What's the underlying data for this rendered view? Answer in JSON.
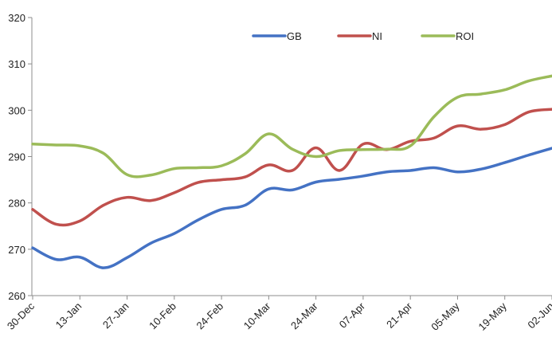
{
  "chart_data": {
    "type": "line",
    "xlabel": "",
    "ylabel": "",
    "x_tick_labels": [
      "30-Dec",
      "13-Jan",
      "27-Jan",
      "10-Feb",
      "24-Feb",
      "10-Mar",
      "24-Mar",
      "07-Apr",
      "21-Apr",
      "05-May",
      "19-May",
      "02-Jun"
    ],
    "y_tick_labels": [
      "260",
      "270",
      "280",
      "290",
      "300",
      "310",
      "320"
    ],
    "ylim": [
      260,
      320
    ],
    "grid": false,
    "legend_position": "top",
    "series": [
      {
        "name": "GB",
        "color": "#4472c4",
        "values": [
          270.3,
          267.8,
          268.3,
          266.0,
          268.2,
          271.3,
          273.4,
          276.3,
          278.6,
          279.5,
          283.0,
          282.8,
          284.5,
          285.1,
          285.8,
          286.7,
          287.0,
          287.6,
          286.7,
          287.3,
          288.7,
          290.3,
          291.8
        ]
      },
      {
        "name": "NI",
        "color": "#c0504d",
        "values": [
          278.6,
          275.4,
          276.1,
          279.5,
          281.2,
          280.5,
          282.2,
          284.4,
          285.0,
          285.6,
          288.2,
          287.0,
          291.9,
          287.0,
          292.7,
          291.5,
          293.3,
          294.0,
          296.6,
          295.9,
          296.9,
          299.6,
          300.2
        ]
      },
      {
        "name": "ROI",
        "color": "#9bbb59",
        "values": [
          292.7,
          292.5,
          292.3,
          290.7,
          286.1,
          286.0,
          287.4,
          287.6,
          288.0,
          290.6,
          294.9,
          291.6,
          290.0,
          291.3,
          291.5,
          291.6,
          292.3,
          298.6,
          302.8,
          303.5,
          304.4,
          306.3,
          307.4
        ]
      }
    ]
  }
}
